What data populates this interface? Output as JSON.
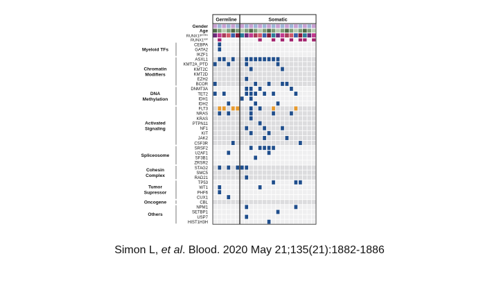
{
  "figure": {
    "headers": {
      "germline": "Germline",
      "somatic": "Somatic"
    },
    "annotation_rows": [
      "Gender",
      "Age",
      "RUNX1germline",
      "RUNX1som"
    ],
    "runx1_germline_label": {
      "base": "RUNX1",
      "sup": "germline"
    },
    "runx1_somatic_label": {
      "base": "RUNX1",
      "sup": "som"
    },
    "groups": [
      {
        "name": [
          "Myeloid TFs"
        ],
        "genes": [
          "CEBPA",
          "GATA2",
          "IKZF1"
        ]
      },
      {
        "name": [
          "Chromatin",
          "Modifiers"
        ],
        "genes": [
          "ASXL1",
          "KMT2A_PTD",
          "KMT2C",
          "KMT2D",
          "EZH2",
          "BCOR"
        ]
      },
      {
        "name": [
          "DNA",
          "Methylation"
        ],
        "genes": [
          "DNMT3A",
          "TET2",
          "IDH1",
          "IDH2"
        ]
      },
      {
        "name": [
          "Activated",
          "Signaling"
        ],
        "genes": [
          "FLT3",
          "NRAS",
          "KRAS",
          "PTPN11",
          "NF1",
          "KIT",
          "JAK2",
          "CSF3R"
        ]
      },
      {
        "name": [
          "Spliceosome"
        ],
        "genes": [
          "SRSF2",
          "U2AF1",
          "SF3B1",
          "ZRSR2"
        ]
      },
      {
        "name": [
          "Cohesin",
          "Complex"
        ],
        "genes": [
          "STAG2",
          "SMC5",
          "RAD21"
        ]
      },
      {
        "name": [
          "Tumor",
          "Supressor"
        ],
        "genes": [
          "TP53",
          "WT1",
          "PHF6",
          "CUX1"
        ]
      },
      {
        "name": [
          "Oncogene"
        ],
        "genes": [
          "CBL"
        ]
      },
      {
        "name": [
          "Others"
        ],
        "genes": [
          "NPM1",
          "SETBP1",
          "USP7",
          "HIST1H3H"
        ]
      }
    ],
    "colors": {
      "mutation": "#1f4e8c",
      "flt3_itd": "#e89a2c",
      "cell_a": "#efeff0",
      "cell_b": "#dcdcde",
      "runx1_germline": "#8a1c3c",
      "gender_male": "#9fb4d6",
      "gender_female": "#c8a0d2",
      "age_young": "#b6ccb0",
      "age_mid": "#7e9c76",
      "age_old": "#4f6b48"
    }
  },
  "citation": {
    "authors": "Simon L, ",
    "etal": "et al",
    "rest": ". Blood. 2020 May 21;135(21):1882-1886"
  }
}
